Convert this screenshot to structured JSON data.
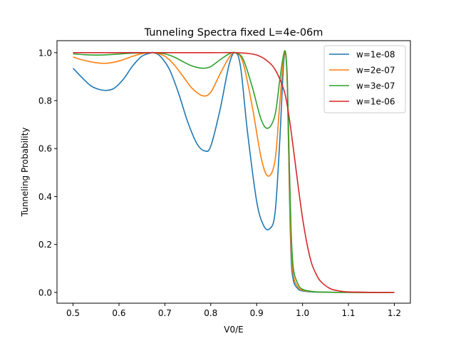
{
  "chart_data": {
    "type": "line",
    "title": "Tunneling Spectra fixed L=4e-06m",
    "xlabel": "V0/E",
    "ylabel": "Tunneling Probability",
    "xlim": [
      0.465,
      1.235
    ],
    "ylim": [
      -0.045,
      1.05
    ],
    "xticks": [
      0.5,
      0.6,
      0.7,
      0.8,
      0.9,
      1.0,
      1.1,
      1.2
    ],
    "xtick_labels": [
      "0.5",
      "0.6",
      "0.7",
      "0.8",
      "0.9",
      "1.0",
      "1.1",
      "1.2"
    ],
    "yticks": [
      0.0,
      0.2,
      0.4,
      0.6,
      0.8,
      1.0
    ],
    "ytick_labels": [
      "0.0",
      "0.2",
      "0.4",
      "0.6",
      "0.8",
      "1.0"
    ],
    "grid": false,
    "legend_position": "top-right",
    "series": [
      {
        "name": "w=1e-08",
        "color": "#1f77b4",
        "x": [
          0.5,
          0.52,
          0.54,
          0.56,
          0.575,
          0.59,
          0.61,
          0.63,
          0.65,
          0.67,
          0.675,
          0.69,
          0.71,
          0.73,
          0.75,
          0.77,
          0.787,
          0.8,
          0.82,
          0.84,
          0.853,
          0.865,
          0.88,
          0.9,
          0.915,
          0.928,
          0.94,
          0.95,
          0.958,
          0.963,
          0.967,
          0.971,
          0.975,
          0.98,
          0.99,
          1.0,
          1.02,
          1.05,
          1.1,
          1.2
        ],
        "y": [
          0.935,
          0.895,
          0.86,
          0.845,
          0.843,
          0.852,
          0.89,
          0.945,
          0.985,
          0.999,
          1.0,
          0.985,
          0.93,
          0.83,
          0.71,
          0.62,
          0.59,
          0.61,
          0.76,
          0.95,
          1.0,
          0.94,
          0.67,
          0.38,
          0.28,
          0.265,
          0.33,
          0.62,
          0.93,
          1.0,
          0.85,
          0.45,
          0.15,
          0.05,
          0.015,
          0.006,
          0.002,
          0.001,
          0.0,
          0.0
        ]
      },
      {
        "name": "w=2e-07",
        "color": "#ff7f0e",
        "x": [
          0.5,
          0.52,
          0.55,
          0.575,
          0.6,
          0.63,
          0.65,
          0.675,
          0.7,
          0.72,
          0.74,
          0.76,
          0.783,
          0.8,
          0.82,
          0.84,
          0.853,
          0.87,
          0.89,
          0.91,
          0.925,
          0.94,
          0.95,
          0.958,
          0.963,
          0.967,
          0.971,
          0.975,
          0.98,
          0.99,
          1.0,
          1.02,
          1.05,
          1.1,
          1.2
        ],
        "y": [
          0.982,
          0.97,
          0.958,
          0.956,
          0.965,
          0.985,
          0.996,
          1.0,
          0.985,
          0.95,
          0.9,
          0.85,
          0.82,
          0.835,
          0.91,
          0.98,
          1.0,
          0.96,
          0.78,
          0.56,
          0.485,
          0.55,
          0.78,
          0.96,
          1.0,
          0.85,
          0.48,
          0.19,
          0.07,
          0.022,
          0.009,
          0.003,
          0.001,
          0.0,
          0.0
        ]
      },
      {
        "name": "w=3e-07",
        "color": "#2ca02c",
        "x": [
          0.5,
          0.53,
          0.56,
          0.59,
          0.62,
          0.65,
          0.675,
          0.7,
          0.72,
          0.74,
          0.76,
          0.783,
          0.8,
          0.82,
          0.84,
          0.853,
          0.87,
          0.89,
          0.91,
          0.925,
          0.94,
          0.95,
          0.958,
          0.963,
          0.967,
          0.971,
          0.975,
          0.98,
          0.99,
          1.0,
          1.02,
          1.05,
          1.1,
          1.2
        ],
        "y": [
          0.995,
          0.991,
          0.99,
          0.993,
          0.997,
          0.999,
          1.0,
          0.995,
          0.982,
          0.962,
          0.944,
          0.935,
          0.942,
          0.97,
          0.995,
          1.0,
          0.975,
          0.86,
          0.72,
          0.685,
          0.74,
          0.88,
          0.985,
          1.0,
          0.88,
          0.55,
          0.26,
          0.1,
          0.035,
          0.013,
          0.004,
          0.001,
          0.0,
          0.0
        ]
      },
      {
        "name": "w=1e-06",
        "color": "#d62728",
        "x": [
          0.5,
          0.6,
          0.7,
          0.8,
          0.85,
          0.88,
          0.9,
          0.92,
          0.94,
          0.96,
          0.97,
          0.98,
          0.99,
          1.0,
          1.01,
          1.02,
          1.03,
          1.04,
          1.06,
          1.08,
          1.1,
          1.13,
          1.16,
          1.2
        ],
        "y": [
          1.0,
          1.0,
          1.0,
          1.0,
          1.0,
          0.997,
          0.99,
          0.97,
          0.93,
          0.84,
          0.74,
          0.6,
          0.45,
          0.31,
          0.2,
          0.12,
          0.075,
          0.045,
          0.016,
          0.006,
          0.002,
          0.001,
          0.0,
          0.0
        ]
      }
    ]
  }
}
